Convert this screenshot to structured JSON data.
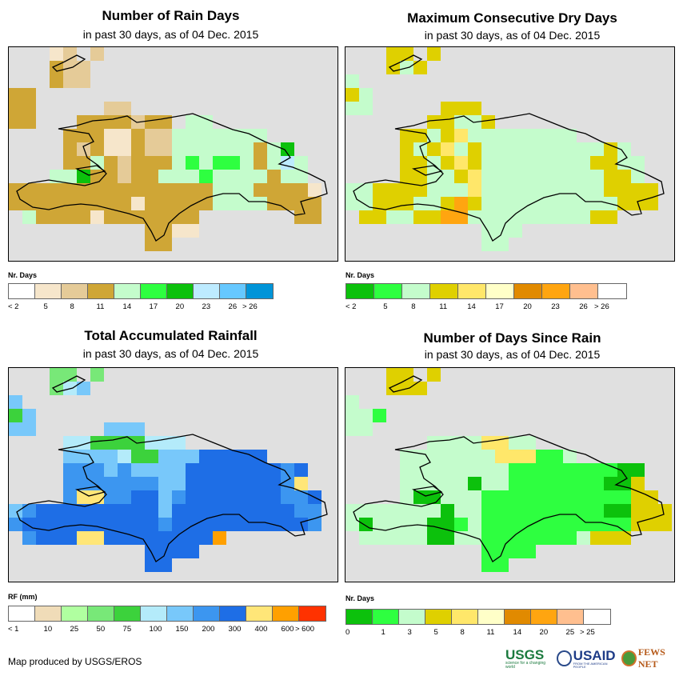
{
  "panels": [
    {
      "title": "Number of Rain Days",
      "subtitle": "in past 30 days, as of 04 Dec. 2015",
      "legend_title": "Nr. Days",
      "legend_colors": [
        "#ffffff",
        "#f6e6cb",
        "#e5cb98",
        "#cfa636",
        "#c4fccc",
        "#2eff40",
        "#0cc10c",
        "#bdebff",
        "#66c8ff",
        "#0094d8"
      ],
      "legend_labels": [
        "< 2",
        "5",
        "8",
        "11",
        "14",
        "17",
        "20",
        "23",
        "26",
        "> 26"
      ]
    },
    {
      "title": "Maximum Consecutive Dry Days",
      "subtitle": "in past 30 days, as of 04 Dec. 2015",
      "legend_title": "Nr. Days",
      "legend_colors": [
        "#0cc10c",
        "#2eff40",
        "#c4fccc",
        "#dfd000",
        "#ffe76a",
        "#ffffc8",
        "#e18a00",
        "#ffa510",
        "#ffbf8f",
        "#ffffff"
      ],
      "legend_labels": [
        "< 2",
        "5",
        "8",
        "11",
        "14",
        "17",
        "20",
        "23",
        "26",
        "> 26"
      ]
    },
    {
      "title": "Total Accumulated Rainfall",
      "subtitle": "in past 30 days, as of 04 Dec. 2015",
      "legend_title": "RF (mm)",
      "legend_colors": [
        "#ffffff",
        "#f0dcb8",
        "#b0ffa0",
        "#78e878",
        "#3cd23c",
        "#b4ebfa",
        "#78c8fa",
        "#3c96f0",
        "#1e6ee6",
        "#ffe678",
        "#ffa000",
        "#ff3200"
      ],
      "legend_labels": [
        "< 1",
        "10",
        "25",
        "50",
        "75",
        "100",
        "150",
        "200",
        "300",
        "400",
        "600",
        "> 600"
      ]
    },
    {
      "title": "Number of Days Since Rain",
      "subtitle": "in past 30 days, as of 04 Dec. 2015",
      "legend_title": "Nr. Days",
      "legend_colors": [
        "#0cc10c",
        "#2eff40",
        "#c4fccc",
        "#dfd000",
        "#ffe76a",
        "#ffffc8",
        "#e18a00",
        "#ffa510",
        "#ffbf8f",
        "#ffffff"
      ],
      "legend_labels": [
        "0",
        "1",
        "3",
        "5",
        "8",
        "11",
        "14",
        "20",
        "25",
        "> 25"
      ]
    }
  ],
  "credit": "Map produced by USGS/EROS",
  "logos": {
    "usgs": "USGS",
    "usgs_tag": "science for a changing world",
    "usaid": "USAID",
    "usaid_tag": "FROM THE AMERICAN PEOPLE",
    "fews": "FEWS NET"
  }
}
